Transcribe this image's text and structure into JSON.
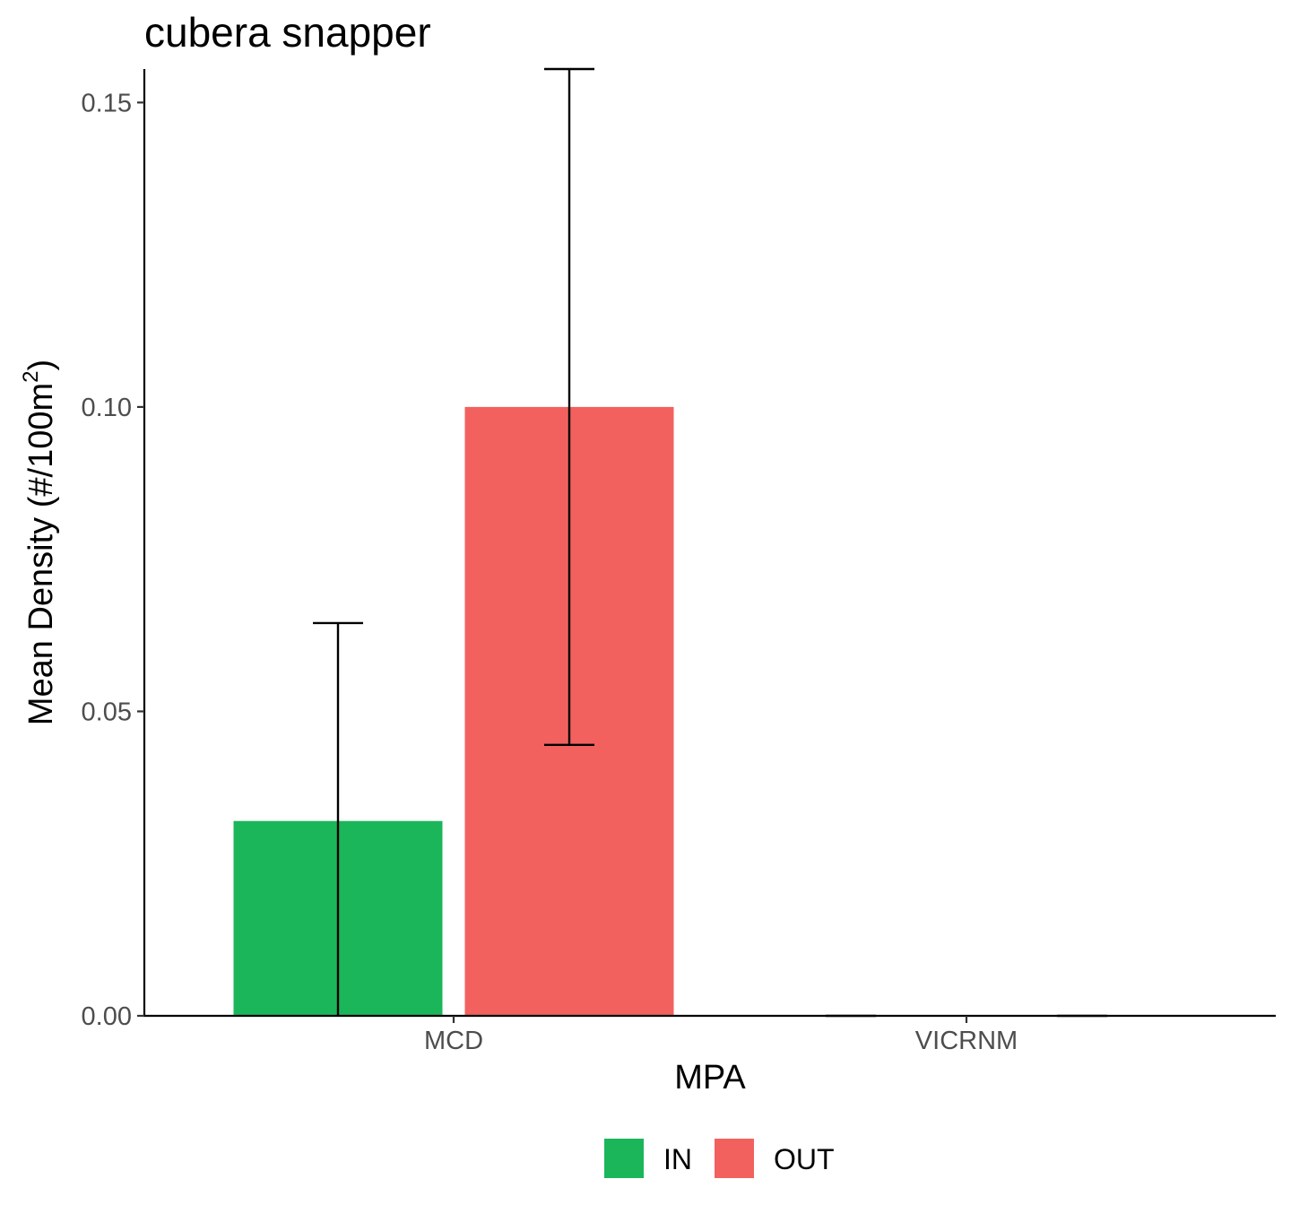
{
  "chart_data": {
    "type": "bar",
    "title": "cubera snapper",
    "xlabel": "MPA",
    "ylabel": "Mean Density (#/100m",
    "ylabel_superscript": "2",
    "ylabel_suffix": ")",
    "categories": [
      "MCD",
      "VICRNM"
    ],
    "series": [
      {
        "name": "IN",
        "color": "#1bb65a",
        "values": [
          0.032,
          0.0
        ],
        "error_low": [
          0.0,
          0.0
        ],
        "error_high": [
          0.0645,
          0.0
        ]
      },
      {
        "name": "OUT",
        "color": "#f2615e",
        "values": [
          0.1,
          0.0
        ],
        "error_low": [
          0.0445,
          0.0
        ],
        "error_high": [
          0.1555,
          0.0
        ]
      }
    ],
    "yticks": [
      0.0,
      0.05,
      0.1,
      0.15
    ],
    "ytick_labels": [
      "0.00",
      "0.05",
      "0.10",
      "0.15"
    ],
    "ylim": [
      0,
      0.1555
    ],
    "grid": false,
    "legend_position": "bottom"
  }
}
